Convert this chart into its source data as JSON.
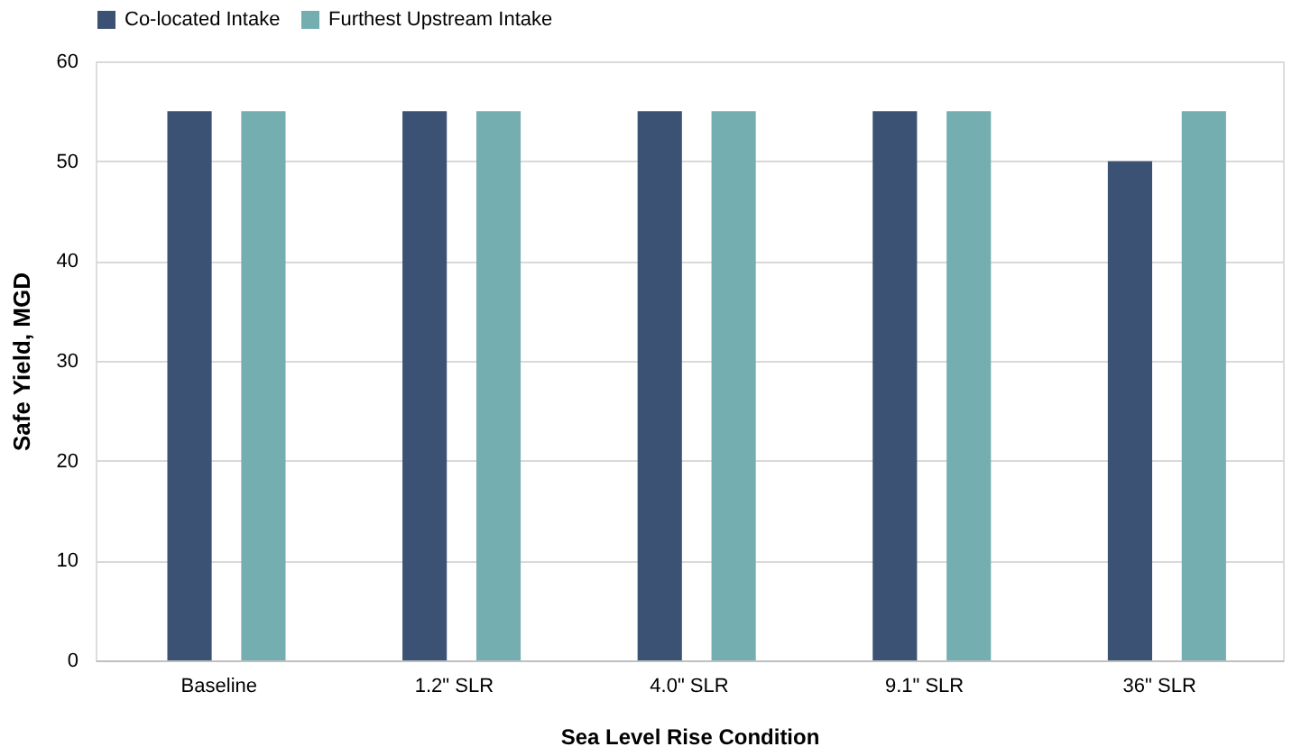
{
  "chart_data": {
    "type": "bar",
    "xlabel": "Sea Level Rise Condition",
    "ylabel": "Safe Yield, MGD",
    "categories": [
      "Baseline",
      "1.2\" SLR",
      "4.0\" SLR",
      "9.1\" SLR",
      "36\" SLR"
    ],
    "series": [
      {
        "name": "Co-located Intake",
        "color": "#3b5274",
        "values": [
          55,
          55,
          55,
          55,
          50
        ]
      },
      {
        "name": "Furthest Upstream Intake",
        "color": "#75aeb0",
        "values": [
          55,
          55,
          55,
          55,
          55
        ]
      }
    ],
    "ylim": [
      0,
      60
    ],
    "yticks": [
      0,
      10,
      20,
      30,
      40,
      50,
      60
    ],
    "grid": "y",
    "legend": "top"
  }
}
